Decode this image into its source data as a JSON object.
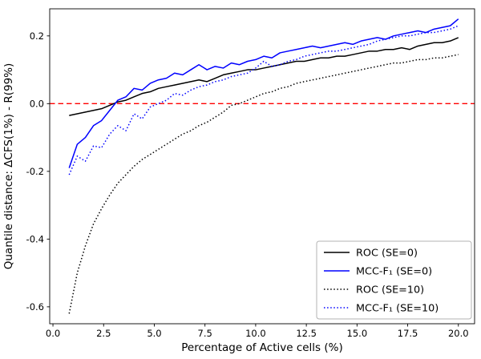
{
  "figure": {
    "background": "#ffffff"
  },
  "chart_data": {
    "type": "line",
    "title": "",
    "xlabel": "Percentage of Active cells (%)",
    "ylabel": "Quantile distance: ΔCFS(1%) - R(99%)",
    "xlim": [
      -0.16,
      20.8
    ],
    "ylim": [
      -0.65,
      0.28
    ],
    "xticks": [
      0.0,
      2.5,
      5.0,
      7.5,
      10.0,
      12.5,
      15.0,
      17.5,
      20.0
    ],
    "yticks": [
      -0.6,
      -0.4,
      -0.2,
      0.0,
      0.2
    ],
    "grid": false,
    "legend_position": "lower right",
    "hline": {
      "y": 0.0,
      "color": "#ff0000",
      "style": "dashed"
    },
    "x": [
      0.8,
      1.2,
      1.6,
      2.0,
      2.4,
      2.8,
      3.2,
      3.6,
      4.0,
      4.4,
      4.8,
      5.2,
      5.6,
      6.0,
      6.4,
      6.8,
      7.2,
      7.6,
      8.0,
      8.4,
      8.8,
      9.2,
      9.6,
      10.0,
      10.4,
      10.8,
      11.2,
      11.6,
      12.0,
      12.4,
      12.8,
      13.2,
      13.6,
      14.0,
      14.4,
      14.8,
      15.2,
      15.6,
      16.0,
      16.4,
      16.8,
      17.2,
      17.6,
      18.0,
      18.4,
      18.8,
      19.2,
      19.6,
      20.0
    ],
    "series": [
      {
        "name": "ROC (SE=0)",
        "color": "#000000",
        "style": "solid",
        "values": [
          -0.035,
          -0.03,
          -0.025,
          -0.02,
          -0.015,
          -0.005,
          0.005,
          0.01,
          0.02,
          0.03,
          0.035,
          0.045,
          0.05,
          0.055,
          0.06,
          0.065,
          0.07,
          0.065,
          0.075,
          0.085,
          0.09,
          0.095,
          0.1,
          0.1,
          0.105,
          0.11,
          0.115,
          0.12,
          0.125,
          0.125,
          0.13,
          0.135,
          0.135,
          0.14,
          0.14,
          0.145,
          0.15,
          0.155,
          0.155,
          0.16,
          0.16,
          0.165,
          0.16,
          0.17,
          0.175,
          0.18,
          0.18,
          0.185,
          0.195
        ]
      },
      {
        "name": "MCC-F₁ (SE=0)",
        "color": "#0000ff",
        "style": "solid",
        "values": [
          -0.19,
          -0.12,
          -0.1,
          -0.065,
          -0.05,
          -0.02,
          0.01,
          0.02,
          0.045,
          0.04,
          0.06,
          0.07,
          0.075,
          0.09,
          0.085,
          0.1,
          0.115,
          0.1,
          0.11,
          0.105,
          0.12,
          0.115,
          0.125,
          0.13,
          0.14,
          0.135,
          0.15,
          0.155,
          0.16,
          0.165,
          0.17,
          0.165,
          0.17,
          0.175,
          0.18,
          0.175,
          0.185,
          0.19,
          0.195,
          0.19,
          0.2,
          0.205,
          0.21,
          0.215,
          0.21,
          0.22,
          0.225,
          0.23,
          0.25
        ]
      },
      {
        "name": "ROC (SE=10)",
        "color": "#000000",
        "style": "dotted",
        "values": [
          -0.62,
          -0.5,
          -0.42,
          -0.355,
          -0.31,
          -0.27,
          -0.235,
          -0.21,
          -0.185,
          -0.165,
          -0.15,
          -0.135,
          -0.12,
          -0.105,
          -0.09,
          -0.08,
          -0.065,
          -0.055,
          -0.04,
          -0.025,
          -0.005,
          0.0,
          0.01,
          0.02,
          0.03,
          0.035,
          0.045,
          0.05,
          0.06,
          0.065,
          0.07,
          0.075,
          0.08,
          0.085,
          0.09,
          0.095,
          0.1,
          0.105,
          0.11,
          0.115,
          0.12,
          0.12,
          0.125,
          0.13,
          0.13,
          0.135,
          0.135,
          0.14,
          0.145
        ]
      },
      {
        "name": "MCC-F₁ (SE=10)",
        "color": "#0000ff",
        "style": "dotted",
        "values": [
          -0.21,
          -0.155,
          -0.17,
          -0.125,
          -0.13,
          -0.09,
          -0.065,
          -0.08,
          -0.03,
          -0.045,
          -0.01,
          0.0,
          0.01,
          0.03,
          0.025,
          0.04,
          0.05,
          0.055,
          0.065,
          0.07,
          0.08,
          0.085,
          0.09,
          0.105,
          0.125,
          0.11,
          0.115,
          0.125,
          0.13,
          0.14,
          0.145,
          0.15,
          0.155,
          0.155,
          0.16,
          0.165,
          0.17,
          0.175,
          0.185,
          0.19,
          0.195,
          0.2,
          0.2,
          0.205,
          0.21,
          0.21,
          0.215,
          0.22,
          0.23
        ]
      }
    ]
  }
}
